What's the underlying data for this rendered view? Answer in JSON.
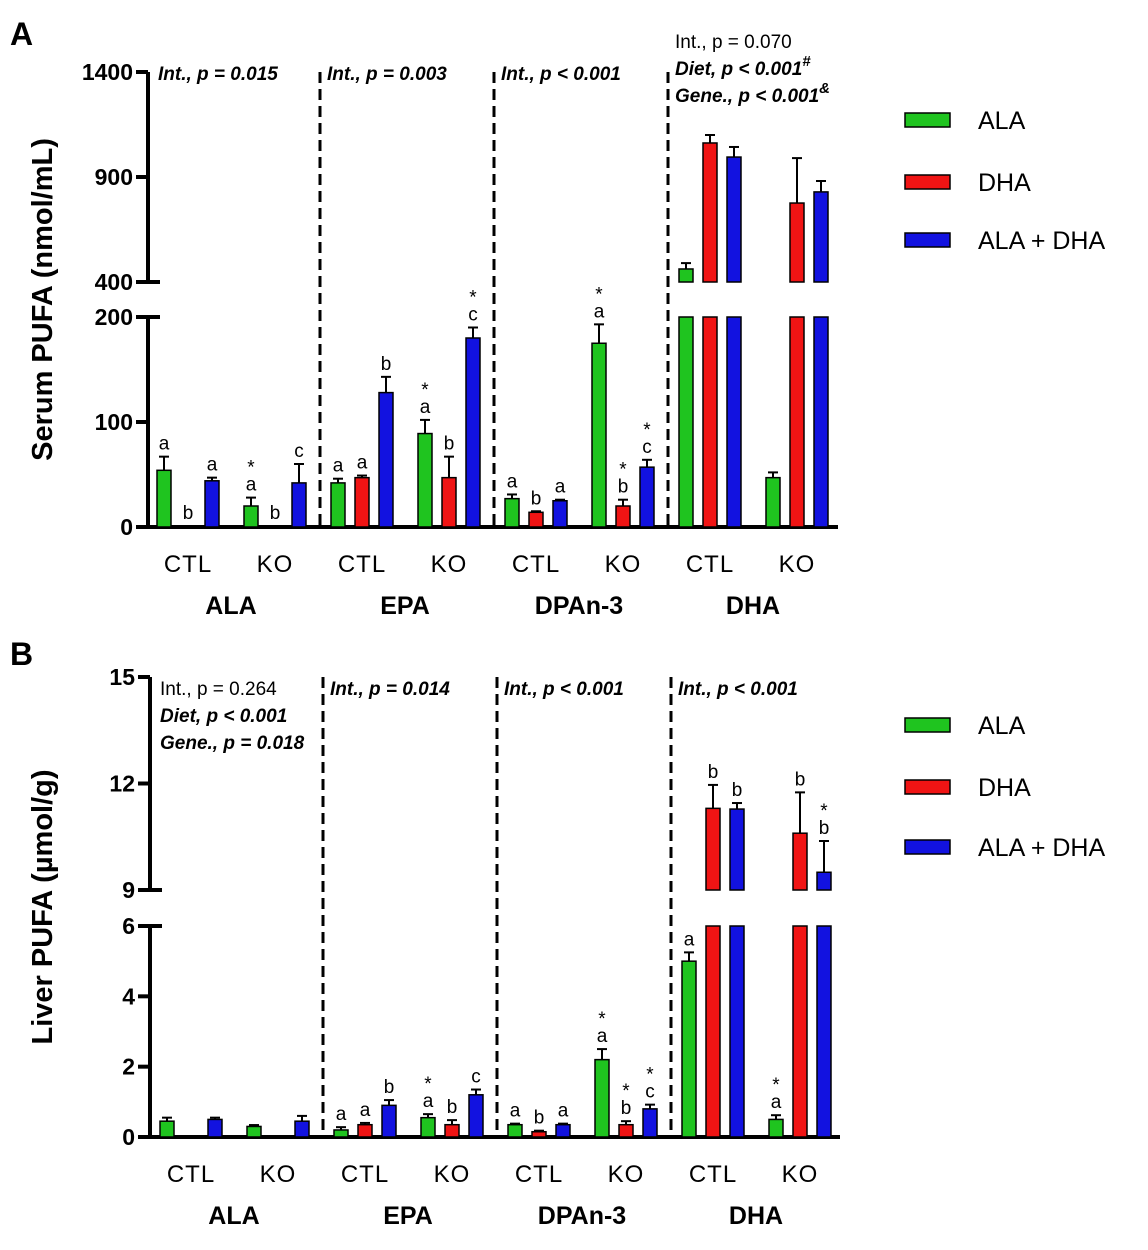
{
  "chart_data": [
    {
      "panel_label": "A",
      "type": "bar",
      "ylabel": "Serum PUFA (nmol/mL)",
      "yticks": [
        0,
        100,
        200,
        400,
        900,
        1400
      ],
      "axis_break": [
        200,
        400
      ],
      "ylim": [
        0,
        1400
      ],
      "groups": [
        "ALA",
        "EPA",
        "DPAn-3",
        "DHA"
      ],
      "genotypes": [
        "CTL",
        "KO"
      ],
      "series": [
        {
          "name": "ALA",
          "color": "#1fc41f",
          "values": [
            54,
            20,
            42,
            89,
            27,
            175,
            462,
            47
          ],
          "errors": [
            13,
            8,
            4,
            13,
            4,
            18,
            28,
            5
          ],
          "letters": [
            "a",
            "*a",
            "a",
            "*a",
            "a",
            "*a",
            "",
            ""
          ]
        },
        {
          "name": "DHA",
          "color": "#f01414",
          "values": [
            1,
            1,
            47,
            47,
            14,
            20,
            1062,
            776
          ],
          "errors": [
            0,
            0,
            2,
            20,
            1,
            6,
            38,
            214
          ],
          "letters": [
            "b",
            "b",
            "a",
            "b",
            "b",
            "*b",
            "",
            ""
          ]
        },
        {
          "name": "ALA + DHA",
          "color": "#1212e0",
          "values": [
            44,
            42,
            128,
            180,
            25,
            57,
            995,
            829
          ],
          "errors": [
            3,
            18,
            15,
            10,
            1,
            7,
            48,
            52
          ],
          "letters": [
            "a",
            "c",
            "b",
            "*c",
            "a",
            "*c",
            "",
            ""
          ]
        }
      ],
      "annotations": [
        [
          {
            "text": "Int., p = 0.015",
            "style": "bold-italic"
          }
        ],
        [
          {
            "text": "Int., p = 0.003",
            "style": "bold-italic"
          }
        ],
        [
          {
            "text": "Int., p < 0.001",
            "style": "bold-italic"
          }
        ],
        [
          {
            "text": "Int., p = 0.070",
            "style": "normal"
          },
          {
            "text": "Diet, p < 0.001",
            "sup": "#",
            "style": "bold-italic"
          },
          {
            "text": "Gene., p < 0.001",
            "sup": "&",
            "style": "bold-italic"
          }
        ]
      ],
      "legend_placement": "right"
    },
    {
      "panel_label": "B",
      "type": "bar",
      "ylabel": "Liver PUFA (µmol/g)",
      "yticks": [
        0,
        2,
        4,
        6,
        9,
        12,
        15
      ],
      "axis_break": [
        6,
        9
      ],
      "ylim": [
        0,
        15
      ],
      "groups": [
        "ALA",
        "EPA",
        "DPAn-3",
        "DHA"
      ],
      "genotypes": [
        "CTL",
        "KO"
      ],
      "series": [
        {
          "name": "ALA",
          "color": "#1fc41f",
          "values": [
            0.45,
            0.3,
            0.2,
            0.55,
            0.35,
            2.2,
            5.0,
            0.5
          ],
          "errors": [
            0.1,
            0.04,
            0.08,
            0.1,
            0.03,
            0.3,
            0.25,
            0.12
          ],
          "letters": [
            "",
            "",
            "a",
            "*a",
            "a",
            "*a",
            "a",
            "*a"
          ]
        },
        {
          "name": "DHA",
          "color": "#f01414",
          "values": [
            0.03,
            0,
            0.35,
            0.35,
            0.15,
            0.35,
            11.3,
            10.6
          ],
          "errors": [
            0,
            0,
            0.05,
            0.13,
            0.03,
            0.1,
            0.66,
            1.15
          ],
          "letters": [
            "",
            "",
            "a",
            "b",
            "b",
            "*b",
            "b",
            "b"
          ]
        },
        {
          "name": "ALA + DHA",
          "color": "#1212e0",
          "values": [
            0.5,
            0.45,
            0.9,
            1.2,
            0.35,
            0.8,
            11.28,
            9.5
          ],
          "errors": [
            0.05,
            0.15,
            0.15,
            0.15,
            0.03,
            0.12,
            0.17,
            0.88
          ],
          "letters": [
            "",
            "",
            "b",
            "c",
            "a",
            "*c",
            "b",
            "*b"
          ]
        }
      ],
      "annotations": [
        [
          {
            "text": "Int., p = 0.264",
            "style": "normal"
          },
          {
            "text": "Diet, p < 0.001",
            "style": "bold-italic"
          },
          {
            "text": "Gene., p = 0.018",
            "style": "bold-italic"
          }
        ],
        [
          {
            "text": "Int., p = 0.014",
            "style": "bold-italic"
          }
        ],
        [
          {
            "text": "Int., p < 0.001",
            "style": "bold-italic"
          }
        ],
        [
          {
            "text": "Int., p < 0.001",
            "style": "bold-italic"
          }
        ]
      ],
      "legend_placement": "right"
    }
  ]
}
